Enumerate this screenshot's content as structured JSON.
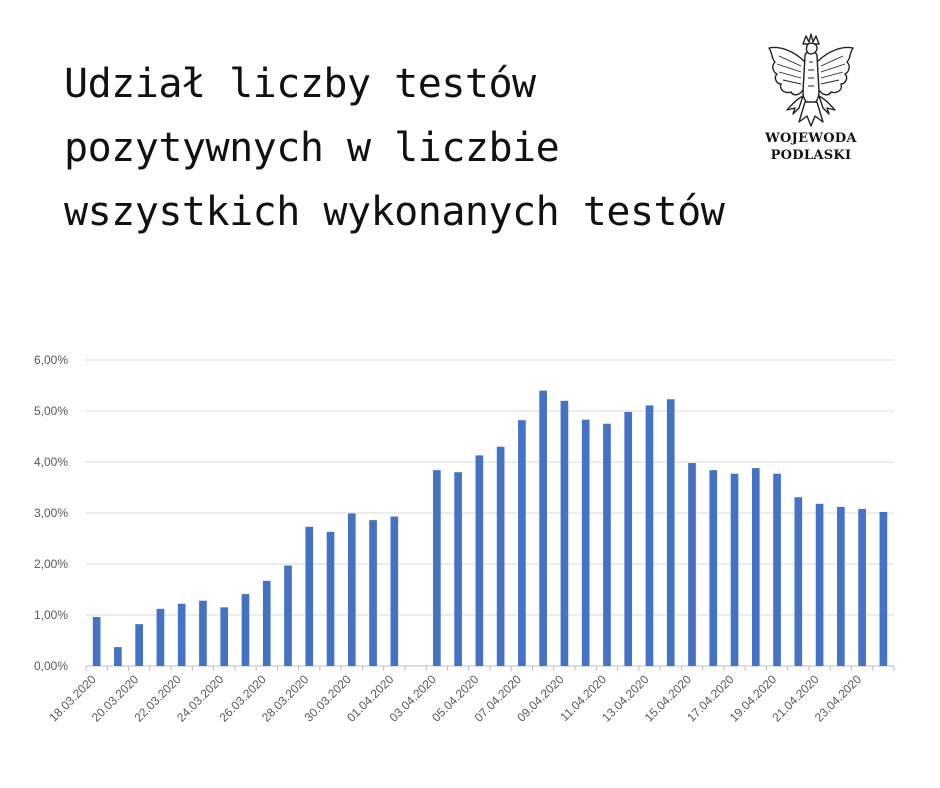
{
  "header": {
    "title_lines": [
      "Udział liczby testów",
      "pozytywnych w liczbie",
      "wszystkich wykonanych testów"
    ]
  },
  "emblem": {
    "icon": "white-eagle-emblem-icon",
    "org_lines": [
      "WOJEWODA",
      "PODLASKI"
    ]
  },
  "chart_data": {
    "type": "bar",
    "color": "#4472C4",
    "grid": true,
    "ylim": [
      0,
      6
    ],
    "y_ticks": [
      "0,00%",
      "1,00%",
      "2,00%",
      "3,00%",
      "4,00%",
      "5,00%",
      "6,00%"
    ],
    "categories": [
      "18.03.2020",
      "19.03.2020",
      "20.03.2020",
      "21.03.2020",
      "22.03.2020",
      "23.03.2020",
      "24.03.2020",
      "25.03.2020",
      "26.03.2020",
      "27.03.2020",
      "28.03.2020",
      "29.03.2020",
      "30.03.2020",
      "31.03.2020",
      "01.04.2020",
      "02.04.2020",
      "03.04.2020",
      "04.04.2020",
      "05.04.2020",
      "06.04.2020",
      "07.04.2020",
      "08.04.2020",
      "09.04.2020",
      "10.04.2020",
      "11.04.2020",
      "12.04.2020",
      "13.04.2020",
      "14.04.2020",
      "15.04.2020",
      "16.04.2020",
      "17.04.2020",
      "18.04.2020",
      "19.04.2020",
      "20.04.2020",
      "21.04.2020",
      "22.04.2020",
      "23.04.2020",
      "24.04.2020"
    ],
    "shown_tick_labels": [
      "18.03.2020",
      "20.03.2020",
      "22.03.2020",
      "24.03.2020",
      "26.03.2020",
      "28.03.2020",
      "30.03.2020",
      "01.04.2020",
      "03.04.2020",
      "05.04.2020",
      "07.04.2020",
      "09.04.2020",
      "11.04.2020",
      "13.04.2020",
      "15.04.2020",
      "17.04.2020",
      "19.04.2020",
      "21.04.2020",
      "23.04.2020"
    ],
    "values": [
      0.96,
      0.37,
      0.82,
      1.12,
      1.22,
      1.28,
      1.15,
      1.41,
      1.67,
      1.97,
      2.73,
      2.63,
      2.99,
      2.86,
      2.93,
      null,
      3.84,
      3.8,
      4.13,
      4.3,
      4.82,
      5.4,
      5.2,
      4.83,
      4.75,
      4.98,
      5.11,
      5.23,
      3.98,
      3.84,
      3.77,
      3.88,
      3.77,
      3.31,
      3.18,
      3.12,
      3.08,
      3.02
    ],
    "title": "",
    "xlabel": "",
    "ylabel": ""
  }
}
